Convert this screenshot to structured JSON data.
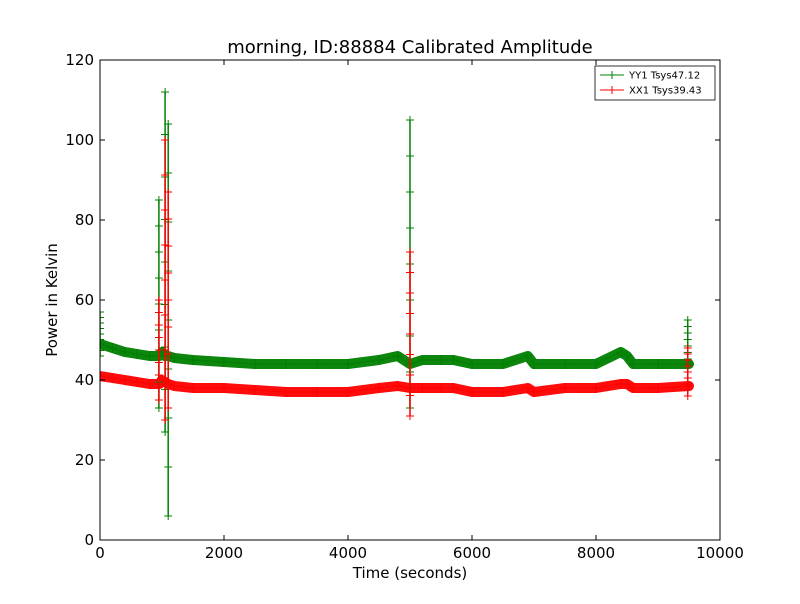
{
  "chart_data": {
    "type": "line",
    "title": "morning, ID:88884 Calibrated Amplitude",
    "xlabel": "Time (seconds)",
    "ylabel": "Power in Kelvin",
    "xlim": [
      0,
      10000
    ],
    "ylim": [
      0,
      120
    ],
    "xticks": [
      0,
      2000,
      4000,
      6000,
      8000,
      10000
    ],
    "yticks": [
      0,
      20,
      40,
      60,
      80,
      100,
      120
    ],
    "xtick_labels": [
      "0",
      "2000",
      "4000",
      "6000",
      "8000",
      "10000"
    ],
    "ytick_labels": [
      "0",
      "20",
      "40",
      "60",
      "80",
      "100",
      "120"
    ],
    "grid": false,
    "legend_position": "top-right",
    "series": [
      {
        "name": "YY1 Tsys47.12",
        "color": "#008000",
        "marker": "plus",
        "x": [
          0,
          200,
          400,
          600,
          800,
          950,
          1000,
          1050,
          1100,
          1200,
          1500,
          2000,
          2500,
          3000,
          3500,
          4000,
          4500,
          4800,
          5000,
          5200,
          5500,
          5700,
          6000,
          6500,
          6900,
          7000,
          7500,
          8000,
          8400,
          8500,
          8600,
          9000,
          9500
        ],
        "y": [
          49,
          48,
          47,
          46.5,
          46,
          46,
          47,
          46,
          46,
          45.5,
          45,
          44.5,
          44,
          44,
          44,
          44,
          45,
          46,
          44,
          45,
          45,
          45,
          44,
          44,
          46,
          44,
          44,
          44,
          47,
          46,
          44,
          44,
          44
        ]
      },
      {
        "name": "XX1 Tsys39.43",
        "color": "#ff0000",
        "marker": "plus",
        "x": [
          0,
          200,
          400,
          600,
          800,
          950,
          1000,
          1050,
          1100,
          1200,
          1500,
          2000,
          2500,
          3000,
          3500,
          4000,
          4500,
          4800,
          5000,
          5200,
          5500,
          5700,
          6000,
          6500,
          6900,
          7000,
          7500,
          8000,
          8400,
          8500,
          8600,
          9000,
          9500
        ],
        "y": [
          41,
          40.5,
          40,
          39.5,
          39,
          39,
          40,
          39.5,
          39,
          38.5,
          38,
          38,
          37.5,
          37,
          37,
          37,
          38,
          38.5,
          38,
          38,
          38,
          38,
          37,
          37,
          38,
          37,
          38,
          38,
          39,
          39,
          38,
          38,
          38.5
        ]
      }
    ],
    "spikes": [
      {
        "series": 0,
        "x": 950,
        "low": 33,
        "high": 85
      },
      {
        "series": 0,
        "x": 1050,
        "low": 27,
        "high": 112
      },
      {
        "series": 0,
        "x": 1100,
        "low": 6,
        "high": 104
      },
      {
        "series": 0,
        "x": 5000,
        "low": 33,
        "high": 105
      },
      {
        "series": 0,
        "x": 9480,
        "low": 42,
        "high": 55
      },
      {
        "series": 0,
        "x": 0,
        "low": 46,
        "high": 57
      },
      {
        "series": 1,
        "x": 950,
        "low": 35,
        "high": 60
      },
      {
        "series": 1,
        "x": 1050,
        "low": 30,
        "high": 100
      },
      {
        "series": 1,
        "x": 1100,
        "low": 33,
        "high": 87
      },
      {
        "series": 1,
        "x": 5000,
        "low": 31,
        "high": 72
      },
      {
        "series": 1,
        "x": 9480,
        "low": 36,
        "high": 48
      }
    ]
  }
}
